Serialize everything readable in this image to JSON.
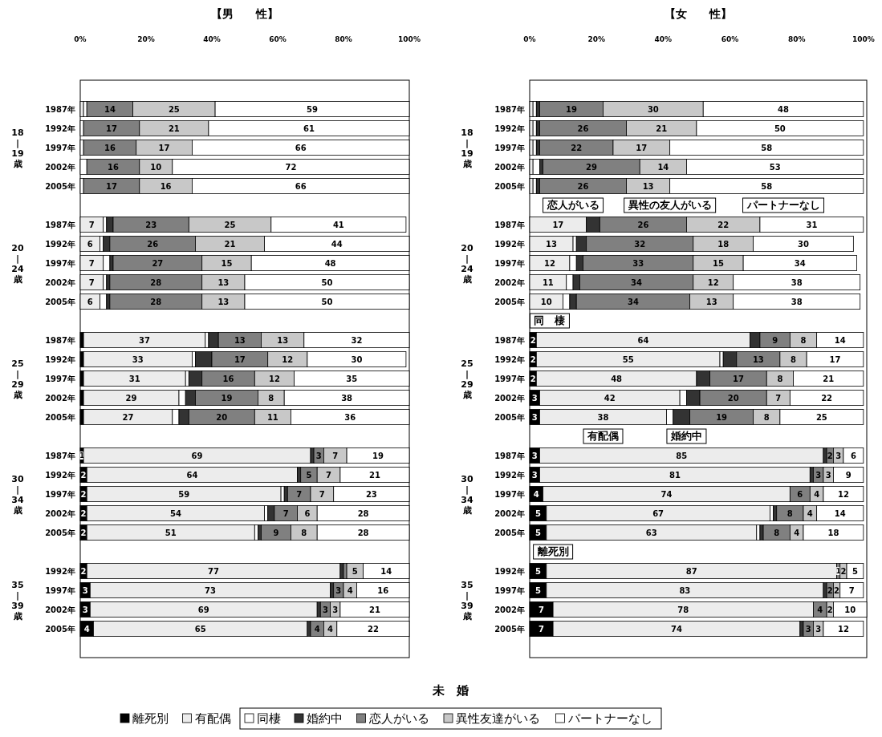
{
  "chart_data": [
    {
      "type": "bar",
      "orientation": "horizontal",
      "stacked": true,
      "title": "【男　　性】",
      "xlim": [
        0,
        100
      ],
      "xticks": [
        {
          "value": 0,
          "label": "0%"
        },
        {
          "value": 20,
          "label": "20%"
        },
        {
          "value": 40,
          "label": "40%"
        },
        {
          "value": 60,
          "label": "60%"
        },
        {
          "value": 80,
          "label": "80%"
        },
        {
          "value": 100,
          "label": "100%"
        }
      ],
      "categories": [
        null,
        "1987年",
        "1992年",
        "1997年",
        "2002年",
        "2005年",
        null,
        "1987年",
        "1992年",
        "1997年",
        "2002年",
        "2005年",
        null,
        "1987年",
        "1992年",
        "1997年",
        "2002年",
        "2005年",
        null,
        "1987年",
        "1992年",
        "1997年",
        "2002年",
        "2005年",
        null,
        "1992年",
        "1997年",
        "2002年",
        "2005年",
        null
      ],
      "series": [
        {
          "name": "離死別",
          "color": "#000000",
          "values": [
            null,
            0,
            0,
            0,
            0,
            0,
            null,
            0,
            0,
            0,
            0,
            0,
            null,
            1,
            1,
            1,
            1,
            1,
            null,
            1,
            2,
            2,
            2,
            2,
            null,
            2,
            3,
            3,
            4,
            null
          ],
          "value_labels": [
            null,
            null,
            null,
            null,
            null,
            null,
            null,
            null,
            null,
            null,
            null,
            null,
            null,
            null,
            null,
            null,
            null,
            null,
            null,
            "1",
            "2",
            "2",
            "2",
            "2",
            null,
            "2",
            "3",
            "3",
            "4",
            null
          ]
        },
        {
          "name": "有配偶",
          "color": "#ececec",
          "values": [
            null,
            1,
            0,
            0,
            0,
            0,
            null,
            7,
            6,
            7,
            7,
            6,
            null,
            37,
            33,
            31,
            29,
            27,
            null,
            69,
            64,
            59,
            54,
            51,
            null,
            77,
            73,
            69,
            65,
            null
          ],
          "value_labels": [
            null,
            null,
            null,
            null,
            null,
            null,
            null,
            "7",
            "6",
            "7",
            "7",
            "6",
            null,
            "37",
            "33",
            "31",
            "29",
            "27",
            null,
            "69",
            "64",
            "59",
            "54",
            "51",
            null,
            "77",
            "73",
            "69",
            "65",
            null
          ]
        },
        {
          "name": "同棲",
          "color": "#ffffff",
          "values": [
            null,
            1,
            1,
            1,
            2,
            1,
            null,
            1,
            1,
            2,
            1,
            2,
            null,
            1,
            1,
            1,
            2,
            2,
            null,
            0,
            0,
            1,
            1,
            1,
            null,
            0,
            0,
            0,
            0,
            null
          ]
        },
        {
          "name": "婚約中",
          "color": "#333333",
          "values": [
            null,
            0,
            0,
            0,
            0,
            0,
            null,
            2,
            2,
            1,
            1,
            1,
            null,
            3,
            5,
            4,
            3,
            3,
            null,
            1,
            1,
            1,
            2,
            1,
            null,
            1,
            1,
            1,
            1,
            null
          ]
        },
        {
          "name": "恋人がいる",
          "color": "#808080",
          "values": [
            null,
            14,
            17,
            16,
            16,
            17,
            null,
            23,
            26,
            27,
            28,
            28,
            null,
            13,
            17,
            16,
            19,
            20,
            null,
            3,
            5,
            7,
            7,
            9,
            null,
            1,
            3,
            3,
            4,
            null
          ],
          "value_labels": [
            null,
            "14",
            "17",
            "16",
            "16",
            "17",
            null,
            "23",
            "26",
            "27",
            "28",
            "28",
            null,
            "13",
            "17",
            "16",
            "19",
            "20",
            null,
            "3",
            "5",
            "7",
            "7",
            "9",
            null,
            null,
            "3",
            "3",
            "4",
            null
          ]
        },
        {
          "name": "異性友達がいる",
          "color": "#c8c8c8",
          "values": [
            null,
            25,
            21,
            17,
            10,
            16,
            null,
            25,
            21,
            15,
            13,
            13,
            null,
            13,
            12,
            12,
            8,
            11,
            null,
            7,
            7,
            7,
            6,
            8,
            null,
            5,
            4,
            3,
            4,
            null
          ],
          "value_labels": [
            null,
            "25",
            "21",
            "17",
            "10",
            "16",
            null,
            "25",
            "21",
            "15",
            "13",
            "13",
            null,
            "13",
            "12",
            "12",
            "8",
            "11",
            null,
            "7",
            "7",
            "7",
            "6",
            "8",
            null,
            "5",
            "4",
            "3",
            "4",
            null
          ]
        },
        {
          "name": "パートナーなし",
          "color": "#ffffff",
          "values": [
            null,
            59,
            61,
            66,
            72,
            66,
            null,
            41,
            44,
            48,
            50,
            50,
            null,
            32,
            30,
            35,
            38,
            36,
            null,
            19,
            21,
            23,
            28,
            28,
            null,
            14,
            16,
            21,
            22,
            null
          ],
          "value_labels": [
            null,
            "59",
            "61",
            "66",
            "72",
            "66",
            null,
            "41",
            "44",
            "48",
            "50",
            "50",
            null,
            "32",
            "30",
            "35",
            "38",
            "36",
            null,
            "19",
            "21",
            "23",
            "28",
            "28",
            null,
            "14",
            "16",
            "21",
            "22",
            null
          ]
        }
      ],
      "annotations": [
        "18\n|\n19\n歳",
        "20\n|\n24\n歳",
        "25\n|\n29\n歳",
        "30\n|\n34\n歳",
        "35\n|\n39\n歳"
      ],
      "legend": "bottom",
      "legend_title": "未　婚"
    },
    {
      "type": "bar",
      "orientation": "horizontal",
      "stacked": true,
      "title": "【女　　性】",
      "xlim": [
        0,
        101
      ],
      "xticks": [
        {
          "value": 0,
          "label": "0%"
        },
        {
          "value": 20,
          "label": "20%"
        },
        {
          "value": 40,
          "label": "40%"
        },
        {
          "value": 60,
          "label": "60%"
        },
        {
          "value": 80,
          "label": "80%"
        },
        {
          "value": 100,
          "label": "100%"
        }
      ],
      "categories": [
        null,
        "1987年",
        "1992年",
        "1997年",
        "2002年",
        "2005年",
        null,
        "1987年",
        "1992年",
        "1997年",
        "2002年",
        "2005年",
        null,
        "1987年",
        "1992年",
        "1997年",
        "2002年",
        "2005年",
        null,
        "1987年",
        "1992年",
        "1997年",
        "2002年",
        "2005年",
        null,
        "1992年",
        "1997年",
        "2002年",
        "2005年",
        null
      ],
      "series": [
        {
          "color": "#000000",
          "values": [
            null,
            0,
            0,
            0,
            0,
            0,
            null,
            0,
            0,
            0,
            0,
            0,
            null,
            2,
            2,
            2,
            3,
            3,
            null,
            3,
            3,
            4,
            5,
            5,
            null,
            5,
            5,
            7,
            7,
            null
          ],
          "value_labels": [
            null,
            null,
            null,
            null,
            null,
            null,
            null,
            null,
            null,
            null,
            null,
            null,
            null,
            "2",
            "2",
            "2",
            "3",
            "3",
            null,
            "3",
            "3",
            "4",
            "5",
            "5",
            null,
            "5",
            "5",
            "7",
            "7",
            null
          ]
        },
        {
          "color": "#ececec",
          "values": [
            null,
            1,
            1,
            1,
            1,
            1,
            null,
            17,
            13,
            12,
            11,
            10,
            null,
            64,
            55,
            48,
            42,
            38,
            null,
            85,
            81,
            74,
            67,
            63,
            null,
            87,
            83,
            78,
            74,
            null
          ],
          "value_labels": [
            null,
            null,
            null,
            null,
            null,
            null,
            null,
            "17",
            "13",
            "12",
            "11",
            "10",
            null,
            "64",
            "55",
            "48",
            "42",
            "38",
            null,
            "85",
            "81",
            "74",
            "67",
            "63",
            null,
            "87",
            "83",
            "78",
            "74",
            null
          ]
        },
        {
          "color": "#ffffff",
          "values": [
            null,
            1,
            1,
            1,
            2,
            1,
            null,
            0,
            1,
            2,
            2,
            2,
            null,
            0,
            1,
            0,
            2,
            2,
            null,
            0,
            0,
            0,
            1,
            1,
            null,
            0,
            0,
            0,
            0,
            null
          ]
        },
        {
          "color": "#333333",
          "values": [
            null,
            1,
            1,
            1,
            1,
            1,
            null,
            4,
            3,
            2,
            2,
            2,
            null,
            3,
            4,
            4,
            4,
            5,
            null,
            1,
            1,
            0,
            1,
            1,
            null,
            0,
            1,
            0,
            1,
            null
          ]
        },
        {
          "color": "#808080",
          "values": [
            null,
            19,
            26,
            22,
            29,
            26,
            null,
            26,
            32,
            33,
            34,
            34,
            null,
            9,
            13,
            17,
            20,
            19,
            null,
            2,
            3,
            6,
            8,
            8,
            null,
            1,
            2,
            4,
            3,
            null
          ],
          "value_labels": [
            null,
            "19",
            "26",
            "22",
            "29",
            "26",
            null,
            "26",
            "32",
            "33",
            "34",
            "34",
            null,
            "9",
            "13",
            "17",
            "20",
            "19",
            null,
            "2",
            "3",
            "6",
            "8",
            "8",
            null,
            "1",
            "2",
            "4",
            "3",
            null
          ]
        },
        {
          "color": "#c8c8c8",
          "values": [
            null,
            30,
            21,
            17,
            14,
            13,
            null,
            22,
            18,
            15,
            12,
            13,
            null,
            8,
            8,
            8,
            7,
            8,
            null,
            3,
            3,
            4,
            4,
            4,
            null,
            2,
            2,
            2,
            3,
            null
          ],
          "value_labels": [
            null,
            "30",
            "21",
            "17",
            "14",
            "13",
            null,
            "22",
            "18",
            "15",
            "12",
            "13",
            null,
            "8",
            "8",
            "8",
            "7",
            "8",
            null,
            "3",
            "3",
            "4",
            "4",
            "4",
            null,
            "2",
            "2",
            "2",
            "3",
            null
          ]
        },
        {
          "color": "#ffffff",
          "values": [
            null,
            48,
            50,
            58,
            53,
            58,
            null,
            31,
            30,
            34,
            38,
            38,
            null,
            14,
            17,
            21,
            22,
            25,
            null,
            6,
            9,
            12,
            14,
            18,
            null,
            5,
            7,
            10,
            12,
            null
          ],
          "value_labels": [
            null,
            "48",
            "50",
            "58",
            "53",
            "58",
            null,
            "31",
            "30",
            "34",
            "38",
            "38",
            null,
            "14",
            "17",
            "21",
            "22",
            "25",
            null,
            "6",
            "9",
            "12",
            "14",
            "18",
            null,
            "5",
            "7",
            "10",
            "12",
            null
          ]
        }
      ],
      "annotations": [
        "18\n|\n19\n歳",
        "20\n|\n24\n歳",
        "25\n|\n29\n歳",
        "30\n|\n34\n歳",
        "35\n|\n39\n歳",
        "恋人がいる",
        "異性の友人がいる",
        "パートナーなし",
        "同　棲",
        "有配偶",
        "婚約中",
        "離死別"
      ]
    }
  ]
}
